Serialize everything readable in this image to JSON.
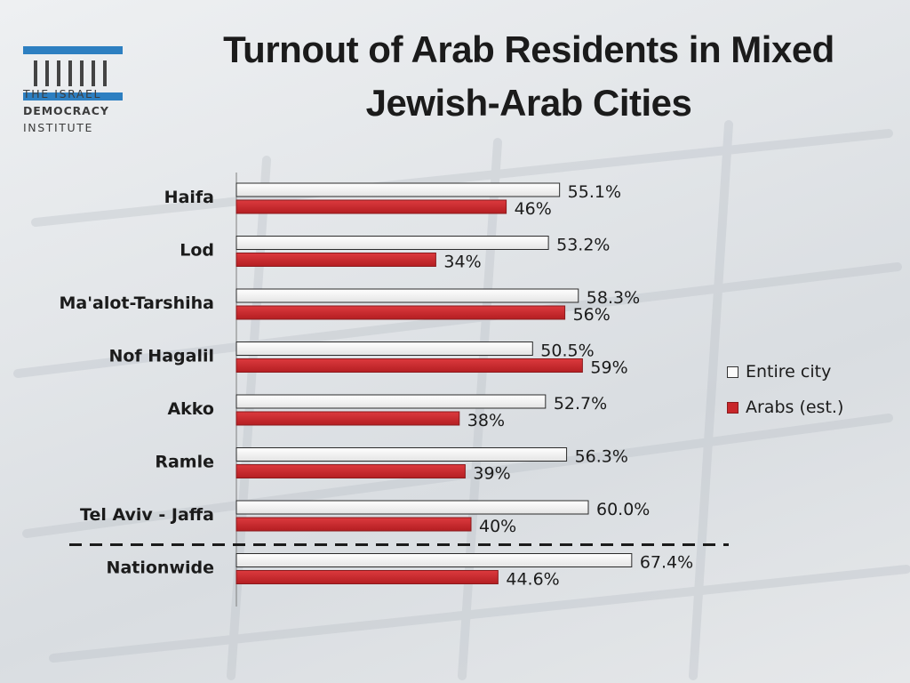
{
  "logo": {
    "line1": "THE ISRAEL",
    "line2": "DEMOCRACY",
    "line3": "INSTITUTE"
  },
  "title_line1": "Turnout of Arab Residents in Mixed",
  "title_line2": "Jewish-Arab Cities",
  "colors": {
    "entire_city_fill": "#fafafa",
    "arabs_fill": "#c8262a",
    "logo_blue": "#2d7fc1"
  },
  "chart_data": {
    "type": "bar",
    "orientation": "horizontal",
    "categories": [
      "Haifa",
      "Lod",
      "Ma'alot-Tarshiha",
      "Nof Hagalil",
      "Akko",
      "Ramle",
      "Tel Aviv - Jaffa",
      "Nationwide"
    ],
    "series": [
      {
        "name": "Entire city",
        "values": [
          55.1,
          53.2,
          58.3,
          50.5,
          52.7,
          56.3,
          60.0,
          67.4
        ],
        "labels": [
          "55.1%",
          "53.2%",
          "58.3%",
          "50.5%",
          "52.7%",
          "56.3%",
          "60.0%",
          "67.4%"
        ]
      },
      {
        "name": "Arabs (est.)",
        "values": [
          46,
          34,
          56,
          59,
          38,
          39,
          40,
          44.6
        ],
        "labels": [
          "46%",
          "34%",
          "56%",
          "59%",
          "38%",
          "39%",
          "40%",
          "44.6%"
        ]
      }
    ],
    "xlim": [
      0,
      100
    ],
    "grid": false,
    "legend_position": "right",
    "separator": "dashed line between Tel Aviv - Jaffa and Nationwide"
  }
}
